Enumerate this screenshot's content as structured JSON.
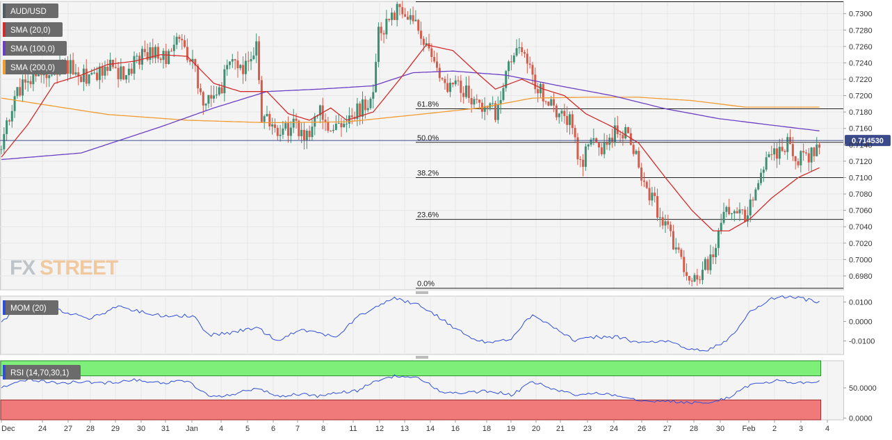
{
  "window": {
    "instrument": "AUD/USD"
  },
  "price_panel": {
    "legend": [
      {
        "label": "AUD/USD",
        "color": "#4f5a63"
      },
      {
        "label": "SMA (20,0)",
        "color": "#d22b2b"
      },
      {
        "label": "SMA (100,0)",
        "color": "#6b3fc4"
      },
      {
        "label": "SMA (200,0)",
        "color": "#f29b30"
      }
    ],
    "watermark_fx": "FX",
    "watermark_street": "STREET",
    "current_price_label": "0.714530",
    "current_price": 0.71453,
    "fib_levels": [
      {
        "label": "61.8%",
        "value": 0.7184
      },
      {
        "label": "50.0%",
        "value": 0.7143
      },
      {
        "label": "38.2%",
        "value": 0.71
      },
      {
        "label": "23.6%",
        "value": 0.7049
      },
      {
        "label": "0.0%",
        "value": 0.6965
      }
    ],
    "ylim": [
      0.6963,
      0.7315
    ],
    "y_ticks": [
      "0.7300",
      "0.7280",
      "0.7260",
      "0.7240",
      "0.7220",
      "0.7200",
      "0.7180",
      "0.7160",
      "0.7140",
      "0.7120",
      "0.7100",
      "0.7080",
      "0.7060",
      "0.7040",
      "0.7020",
      "0.7000",
      "0.6980"
    ]
  },
  "mom_panel": {
    "legend": "MOM (20)",
    "y_ticks": [
      "0.0100",
      "0.0000",
      "-0.0100"
    ],
    "ylim": [
      -0.017,
      0.013
    ]
  },
  "rsi_panel": {
    "legend": "RSI (14,70,30,1)",
    "y_ticks": [
      "50.0000",
      "0.0000"
    ],
    "ylim": [
      -3,
      95
    ],
    "overbought": 70,
    "oversold": 30
  },
  "x_axis": {
    "labels": [
      "Dec",
      "24",
      "27",
      "28",
      "29",
      "30",
      "31",
      "Jan",
      "4",
      "5",
      "6",
      "7",
      "8",
      "11",
      "12",
      "13",
      "14",
      "16",
      "18",
      "19",
      "20",
      "21",
      "23",
      "24",
      "26",
      "27",
      "28",
      "30",
      "Feb",
      "2",
      "3",
      "4"
    ]
  },
  "colors": {
    "bull": "#3e8f74",
    "bear": "#d65b4b",
    "sma20": "#d22b2b",
    "sma100": "#6b3fc4",
    "sma200": "#f29b30",
    "mom": "#2f4fd8",
    "rsi": "#2f4fd8",
    "overbought_zone": "#7ef07a",
    "oversold_zone": "#f07a7a",
    "price_line": "#3a4a8a"
  },
  "chart_data": [
    {
      "type": "candlestick",
      "title": "AUD/USD",
      "ylim": [
        0.6963,
        0.7315
      ],
      "series": [
        {
          "name": "AUD/USD",
          "anchors": [
            [
              0,
              0.7138
            ],
            [
              6,
              0.7205
            ],
            [
              12,
              0.7222
            ],
            [
              18,
              0.723
            ],
            [
              24,
              0.7238
            ],
            [
              30,
              0.7222
            ],
            [
              36,
              0.723
            ],
            [
              40,
              0.7236
            ],
            [
              46,
              0.7226
            ],
            [
              52,
              0.7248
            ],
            [
              58,
              0.7255
            ],
            [
              62,
              0.7243
            ],
            [
              66,
              0.7265
            ],
            [
              72,
              0.724
            ],
            [
              76,
              0.719
            ],
            [
              82,
              0.7205
            ],
            [
              86,
              0.7238
            ],
            [
              90,
              0.7232
            ],
            [
              96,
              0.7262
            ],
            [
              98,
              0.7175
            ],
            [
              104,
              0.716
            ],
            [
              110,
              0.7162
            ],
            [
              114,
              0.715
            ],
            [
              120,
              0.7178
            ],
            [
              124,
              0.716
            ],
            [
              130,
              0.7175
            ],
            [
              134,
              0.718
            ],
            [
              140,
              0.7195
            ],
            [
              142,
              0.7275
            ],
            [
              146,
              0.7296
            ],
            [
              150,
              0.7305
            ],
            [
              156,
              0.7285
            ],
            [
              162,
              0.7245
            ],
            [
              168,
              0.7215
            ],
            [
              174,
              0.7208
            ],
            [
              180,
              0.719
            ],
            [
              186,
              0.718
            ],
            [
              190,
              0.7225
            ],
            [
              196,
              0.726
            ],
            [
              198,
              0.724
            ],
            [
              202,
              0.721
            ],
            [
              208,
              0.7185
            ],
            [
              214,
              0.717
            ],
            [
              218,
              0.7115
            ],
            [
              222,
              0.715
            ],
            [
              226,
              0.713
            ],
            [
              230,
              0.7152
            ],
            [
              236,
              0.716
            ],
            [
              240,
              0.7115
            ],
            [
              244,
              0.708
            ],
            [
              248,
              0.7055
            ],
            [
              252,
              0.703
            ],
            [
              256,
              0.7
            ],
            [
              260,
              0.6975
            ],
            [
              264,
              0.6985
            ],
            [
              268,
              0.701
            ],
            [
              272,
              0.7055
            ],
            [
              276,
              0.7068
            ],
            [
              280,
              0.7045
            ],
            [
              284,
              0.7095
            ],
            [
              288,
              0.7125
            ],
            [
              292,
              0.713
            ],
            [
              296,
              0.714
            ],
            [
              300,
              0.7125
            ],
            [
              304,
              0.7118
            ],
            [
              306,
              0.7135
            ],
            [
              308,
              0.7145
            ]
          ]
        },
        {
          "name": "SMA (20,0)",
          "anchors": [
            [
              0,
              0.7125
            ],
            [
              10,
              0.7165
            ],
            [
              20,
              0.7215
            ],
            [
              30,
              0.7225
            ],
            [
              40,
              0.7238
            ],
            [
              50,
              0.7242
            ],
            [
              60,
              0.725
            ],
            [
              70,
              0.7248
            ],
            [
              80,
              0.7215
            ],
            [
              90,
              0.7205
            ],
            [
              100,
              0.7205
            ],
            [
              108,
              0.7178
            ],
            [
              116,
              0.717
            ],
            [
              124,
              0.7185
            ],
            [
              130,
              0.717
            ],
            [
              140,
              0.718
            ],
            [
              150,
              0.722
            ],
            [
              160,
              0.7262
            ],
            [
              170,
              0.7255
            ],
            [
              180,
              0.7225
            ],
            [
              186,
              0.7208
            ],
            [
              196,
              0.722
            ],
            [
              204,
              0.7208
            ],
            [
              212,
              0.72
            ],
            [
              220,
              0.7178
            ],
            [
              230,
              0.7162
            ],
            [
              240,
              0.7142
            ],
            [
              250,
              0.71
            ],
            [
              260,
              0.706
            ],
            [
              268,
              0.7035
            ],
            [
              274,
              0.7035
            ],
            [
              282,
              0.705
            ],
            [
              290,
              0.7075
            ],
            [
              300,
              0.71
            ],
            [
              308,
              0.7112
            ]
          ]
        },
        {
          "name": "SMA (100,0)",
          "anchors": [
            [
              0,
              0.7122
            ],
            [
              30,
              0.713
            ],
            [
              60,
              0.7162
            ],
            [
              80,
              0.7185
            ],
            [
              100,
              0.7205
            ],
            [
              120,
              0.7208
            ],
            [
              140,
              0.7212
            ],
            [
              155,
              0.7228
            ],
            [
              170,
              0.723
            ],
            [
              190,
              0.7225
            ],
            [
              210,
              0.7212
            ],
            [
              230,
              0.72
            ],
            [
              250,
              0.7184
            ],
            [
              270,
              0.7172
            ],
            [
              290,
              0.7164
            ],
            [
              308,
              0.7157
            ]
          ]
        },
        {
          "name": "SMA (200,0)",
          "anchors": [
            [
              0,
              0.7197
            ],
            [
              40,
              0.7177
            ],
            [
              70,
              0.717
            ],
            [
              100,
              0.7167
            ],
            [
              130,
              0.7168
            ],
            [
              160,
              0.7178
            ],
            [
              180,
              0.7185
            ],
            [
              200,
              0.7197
            ],
            [
              220,
              0.7198
            ],
            [
              240,
              0.7198
            ],
            [
              260,
              0.7194
            ],
            [
              280,
              0.7186
            ],
            [
              300,
              0.7186
            ],
            [
              308,
              0.7186
            ]
          ]
        }
      ]
    },
    {
      "type": "line",
      "title": "MOM (20)",
      "ylim": [
        -0.017,
        0.013
      ],
      "series": [
        {
          "name": "MOM (20)",
          "anchors": [
            [
              0,
              0.0
            ],
            [
              10,
              0.01
            ],
            [
              18,
              0.008
            ],
            [
              26,
              0.004
            ],
            [
              34,
              0.0015
            ],
            [
              44,
              0.008
            ],
            [
              52,
              0.005
            ],
            [
              60,
              0.003
            ],
            [
              72,
              0.003
            ],
            [
              78,
              -0.007
            ],
            [
              86,
              -0.006
            ],
            [
              96,
              -0.003
            ],
            [
              104,
              -0.01
            ],
            [
              112,
              -0.004
            ],
            [
              120,
              -0.006
            ],
            [
              126,
              -0.008
            ],
            [
              134,
              0.002
            ],
            [
              140,
              0.007
            ],
            [
              148,
              0.012
            ],
            [
              158,
              0.008
            ],
            [
              166,
              0.001
            ],
            [
              176,
              -0.008
            ],
            [
              184,
              -0.011
            ],
            [
              192,
              -0.009
            ],
            [
              200,
              0.004
            ],
            [
              208,
              -0.003
            ],
            [
              216,
              -0.01
            ],
            [
              224,
              -0.008
            ],
            [
              232,
              -0.008
            ],
            [
              240,
              -0.011
            ],
            [
              250,
              -0.01
            ],
            [
              258,
              -0.014
            ],
            [
              266,
              -0.015
            ],
            [
              274,
              -0.009
            ],
            [
              282,
              0.005
            ],
            [
              292,
              0.013
            ],
            [
              300,
              0.012
            ],
            [
              308,
              0.01
            ]
          ]
        }
      ]
    },
    {
      "type": "line",
      "title": "RSI (14,70,30,1)",
      "ylim": [
        -3,
        95
      ],
      "series": [
        {
          "name": "RSI (14,70,30,1)",
          "anchors": [
            [
              0,
              52
            ],
            [
              10,
              65
            ],
            [
              20,
              58
            ],
            [
              30,
              60
            ],
            [
              40,
              58
            ],
            [
              50,
              64
            ],
            [
              60,
              58
            ],
            [
              70,
              62
            ],
            [
              78,
              36
            ],
            [
              86,
              38
            ],
            [
              96,
              50
            ],
            [
              104,
              36
            ],
            [
              112,
              40
            ],
            [
              120,
              36
            ],
            [
              126,
              42
            ],
            [
              134,
              45
            ],
            [
              140,
              60
            ],
            [
              148,
              70
            ],
            [
              158,
              65
            ],
            [
              166,
              42
            ],
            [
              176,
              42
            ],
            [
              184,
              45
            ],
            [
              192,
              38
            ],
            [
              200,
              60
            ],
            [
              208,
              48
            ],
            [
              216,
              38
            ],
            [
              224,
              42
            ],
            [
              232,
              38
            ],
            [
              240,
              30
            ],
            [
              250,
              28
            ],
            [
              258,
              26
            ],
            [
              266,
              24
            ],
            [
              274,
              35
            ],
            [
              282,
              55
            ],
            [
              292,
              62
            ],
            [
              300,
              58
            ],
            [
              308,
              60
            ]
          ]
        }
      ]
    }
  ]
}
